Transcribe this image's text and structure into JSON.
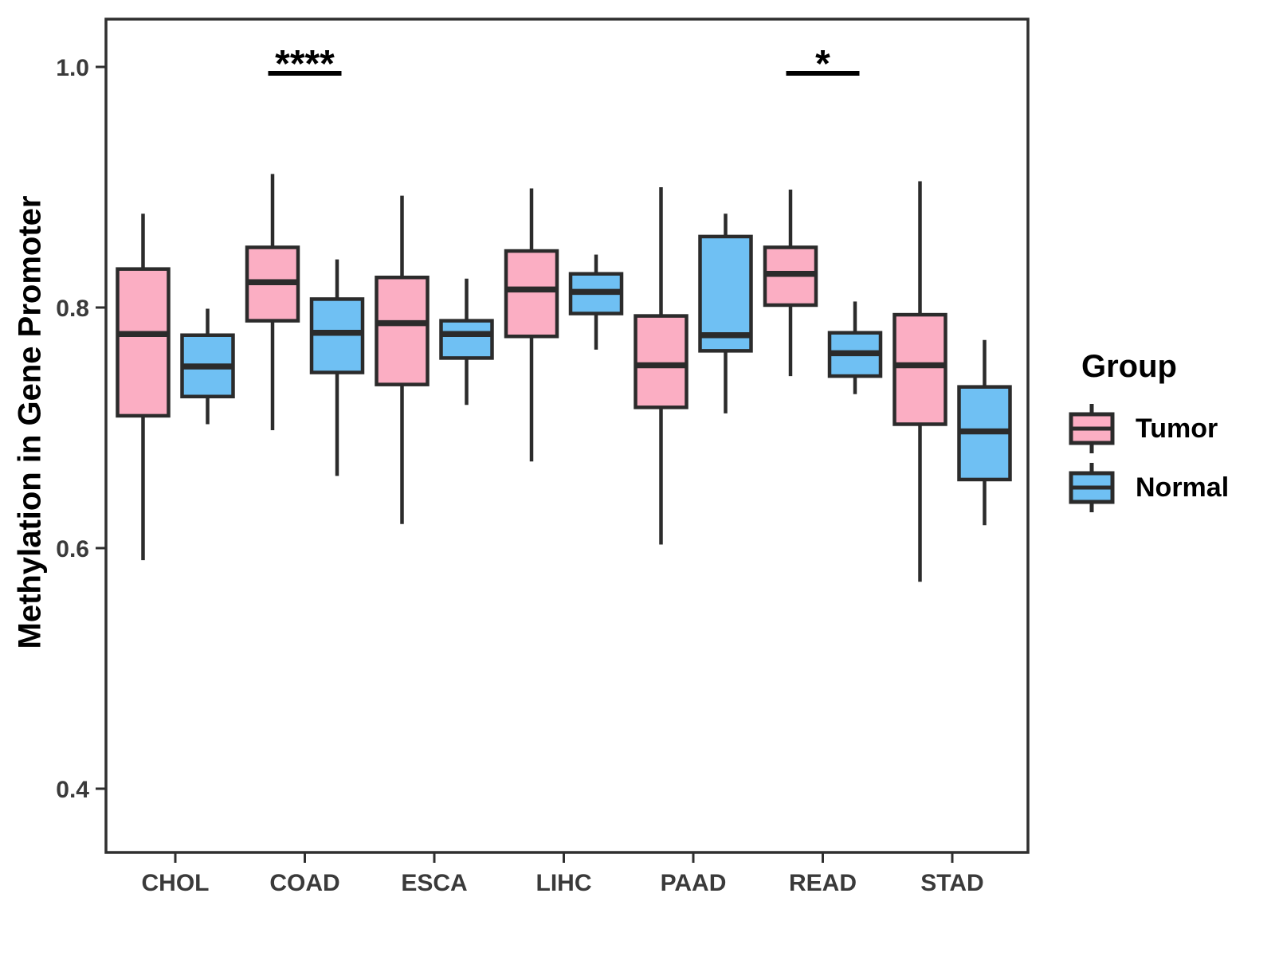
{
  "figure": {
    "y_axis_title": "Methylation in Gene Promoter",
    "legend": {
      "title": "Group",
      "items": [
        {
          "label": "Tumor",
          "color": "#FBAEC3"
        },
        {
          "label": "Normal",
          "color": "#6FC0F3"
        }
      ]
    }
  },
  "chart_data": {
    "type": "boxplot",
    "title": "",
    "xlabel": "",
    "ylabel": "Methylation in Gene Promoter",
    "categories": [
      "CHOL",
      "COAD",
      "ESCA",
      "LIHC",
      "PAAD",
      "READ",
      "STAD"
    ],
    "yticks": [
      0.4,
      0.6,
      0.8,
      1.0
    ],
    "ylim": [
      0.35,
      1.04
    ],
    "grid": false,
    "legend_position": "right",
    "series": [
      {
        "name": "Tumor",
        "color": "#FBAEC3",
        "boxes": [
          {
            "min": 0.59,
            "q1": 0.71,
            "median": 0.778,
            "q3": 0.832,
            "max": 0.878
          },
          {
            "min": 0.698,
            "q1": 0.789,
            "median": 0.821,
            "q3": 0.85,
            "max": 0.911
          },
          {
            "min": 0.62,
            "q1": 0.736,
            "median": 0.787,
            "q3": 0.825,
            "max": 0.893
          },
          {
            "min": 0.672,
            "q1": 0.776,
            "median": 0.815,
            "q3": 0.847,
            "max": 0.899
          },
          {
            "min": 0.603,
            "q1": 0.717,
            "median": 0.752,
            "q3": 0.793,
            "max": 0.9
          },
          {
            "min": 0.743,
            "q1": 0.802,
            "median": 0.828,
            "q3": 0.85,
            "max": 0.898
          },
          {
            "min": 0.572,
            "q1": 0.703,
            "median": 0.752,
            "q3": 0.794,
            "max": 0.905
          }
        ]
      },
      {
        "name": "Normal",
        "color": "#6FC0F3",
        "boxes": [
          {
            "min": 0.703,
            "q1": 0.726,
            "median": 0.751,
            "q3": 0.777,
            "max": 0.799
          },
          {
            "min": 0.66,
            "q1": 0.746,
            "median": 0.779,
            "q3": 0.807,
            "max": 0.84
          },
          {
            "min": 0.719,
            "q1": 0.758,
            "median": 0.778,
            "q3": 0.789,
            "max": 0.824
          },
          {
            "min": 0.765,
            "q1": 0.795,
            "median": 0.813,
            "q3": 0.828,
            "max": 0.844
          },
          {
            "min": 0.712,
            "q1": 0.764,
            "median": 0.777,
            "q3": 0.859,
            "max": 0.878
          },
          {
            "min": 0.728,
            "q1": 0.743,
            "median": 0.762,
            "q3": 0.779,
            "max": 0.805
          },
          {
            "min": 0.619,
            "q1": 0.657,
            "median": 0.697,
            "q3": 0.734,
            "max": 0.773
          }
        ]
      }
    ],
    "significance": [
      {
        "category": "COAD",
        "label": "****"
      },
      {
        "category": "READ",
        "label": "*"
      }
    ],
    "colors": {
      "box_stroke": "#2B2B2B",
      "axis_text": "#3A3A3A",
      "panel_border": "#2F2F2F",
      "annotation": "#000000"
    }
  }
}
